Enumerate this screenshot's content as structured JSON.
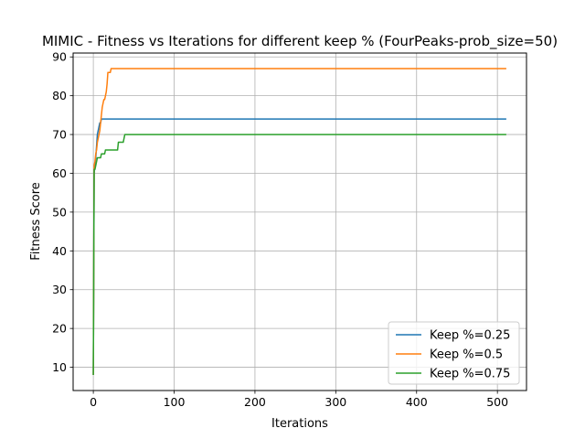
{
  "chart_data": {
    "type": "line",
    "title": "MIMIC - Fitness vs Iterations for different keep % (FourPeaks-prob_size=50)",
    "xlabel": "Iterations",
    "ylabel": "Fitness Score",
    "xlim": [
      -25,
      536
    ],
    "ylim": [
      4,
      91
    ],
    "x_ticks": [
      0,
      100,
      200,
      300,
      400,
      500
    ],
    "y_ticks": [
      10,
      20,
      30,
      40,
      50,
      60,
      70,
      80,
      90
    ],
    "grid": true,
    "legend_position": "lower-right",
    "series": [
      {
        "name": "Keep %=0.25",
        "color": "#1f77b4",
        "x": [
          0,
          1,
          2,
          3,
          4,
          5,
          7,
          8,
          9,
          10,
          12,
          511
        ],
        "y": [
          8,
          60,
          62,
          64,
          67,
          70,
          72,
          73,
          73,
          74,
          74,
          74
        ]
      },
      {
        "name": "Keep %=0.5",
        "color": "#ff7f0e",
        "x": [
          0,
          1,
          2,
          3,
          4,
          5,
          6,
          7,
          8,
          9,
          10,
          11,
          12,
          13,
          14,
          15,
          16,
          17,
          18,
          19,
          20,
          21,
          22,
          23,
          511
        ],
        "y": [
          8,
          62,
          63,
          65,
          66,
          68,
          69,
          70,
          71,
          73,
          75,
          77,
          78,
          79,
          79,
          80,
          81,
          83,
          86,
          86,
          86,
          86,
          87,
          87,
          87
        ]
      },
      {
        "name": "Keep %=0.75",
        "color": "#2ca02c",
        "x": [
          0,
          1,
          2,
          3,
          4,
          5,
          6,
          7,
          8,
          9,
          10,
          11,
          12,
          13,
          14,
          15,
          16,
          17,
          18,
          19,
          20,
          21,
          22,
          23,
          24,
          25,
          26,
          27,
          28,
          29,
          30,
          31,
          32,
          33,
          34,
          35,
          36,
          37,
          38,
          39,
          40,
          41,
          511
        ],
        "y": [
          8,
          61,
          61,
          62,
          63,
          64,
          64,
          64,
          64,
          64,
          65,
          65,
          65,
          65,
          65,
          66,
          66,
          66,
          66,
          66,
          66,
          66,
          66,
          66,
          66,
          66,
          66,
          66,
          66,
          66,
          66,
          68,
          68,
          68,
          68,
          68,
          68,
          68,
          69,
          70,
          70,
          70,
          70
        ]
      }
    ]
  }
}
